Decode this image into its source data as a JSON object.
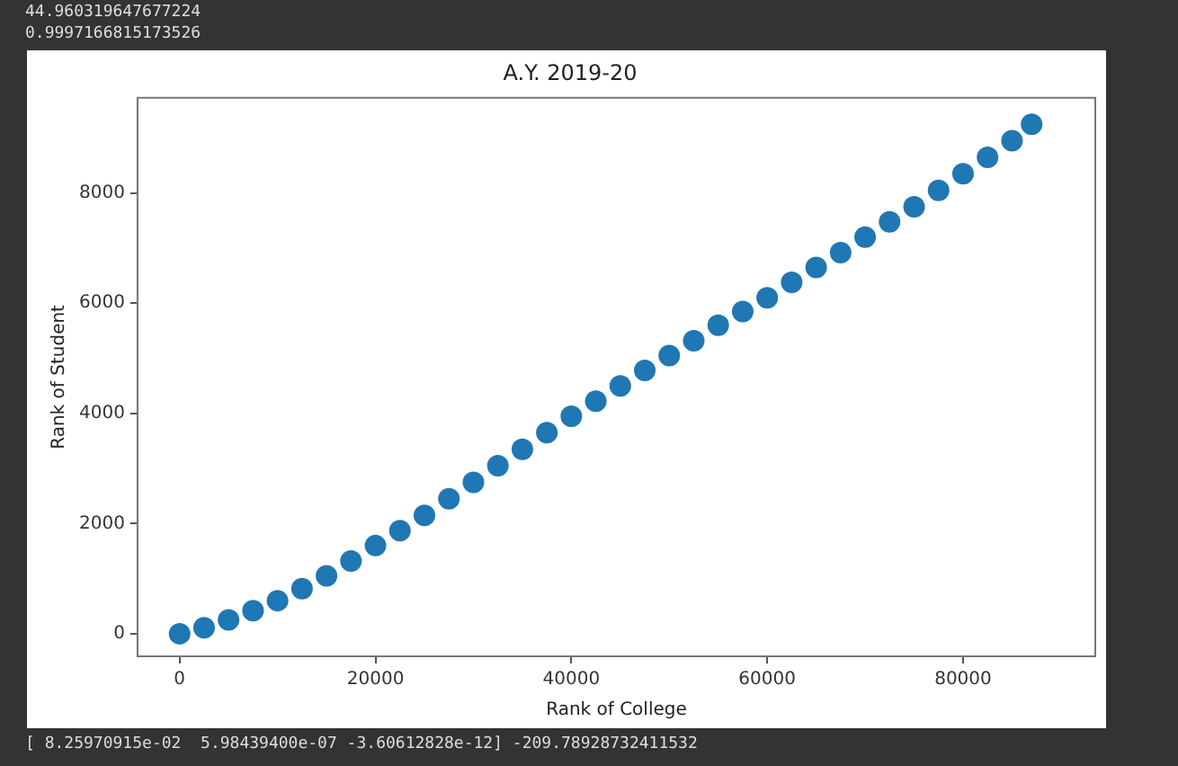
{
  "chart_data": {
    "type": "scatter",
    "title": "A.Y. 2019-20",
    "xlabel": "Rank of College",
    "ylabel": "Rank of Student",
    "annotations": [
      "44.960319647677224",
      "0.9997166815173526",
      "[ 8.25970915e-02  5.98439400e-07 -3.60612828e-12] -209.78928732411532"
    ],
    "x": [
      0,
      2500,
      5000,
      7500,
      10000,
      12500,
      15000,
      17500,
      20000,
      22500,
      25000,
      27500,
      30000,
      32500,
      35000,
      37500,
      40000,
      42500,
      45000,
      47500,
      50000,
      52500,
      55000,
      57500,
      60000,
      62500,
      65000,
      67500,
      70000,
      72500,
      75000,
      77500,
      80000,
      82500,
      85000,
      87000
    ],
    "series": [
      {
        "color": "#1f77b4",
        "values": [
          0,
          110,
          250,
          420,
          600,
          820,
          1050,
          1320,
          1600,
          1870,
          2150,
          2450,
          2750,
          3050,
          3350,
          3650,
          3950,
          4220,
          4500,
          4780,
          5050,
          5320,
          5600,
          5850,
          6100,
          6380,
          6650,
          6920,
          7200,
          7480,
          7750,
          8050,
          8350,
          8650,
          8950,
          9250
        ]
      }
    ],
    "xlim": [
      -4300,
      93500
    ],
    "xticks": [
      0,
      20000,
      40000,
      60000,
      80000
    ],
    "ylim": [
      -410,
      9730
    ],
    "yticks": [
      0,
      2000,
      4000,
      6000,
      8000
    ],
    "grid": false,
    "legend": false,
    "marker": "circle"
  }
}
